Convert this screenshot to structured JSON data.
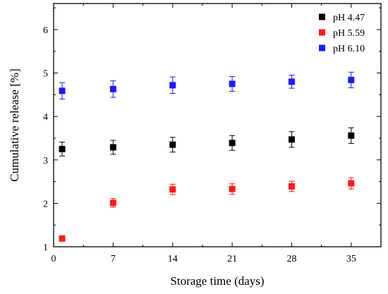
{
  "chart_data": {
    "type": "scatter",
    "title": "",
    "xlabel": "Storage time (days)",
    "ylabel": "Cumulative release [%]",
    "xlim": [
      0,
      38.5
    ],
    "ylim": [
      1,
      6.6
    ],
    "xticks": [
      0,
      7,
      14,
      21,
      28,
      35
    ],
    "yticks": [
      1,
      2,
      3,
      4,
      5,
      6
    ],
    "grid": false,
    "legend_position": "top-right",
    "marker": "square",
    "error_bars": true,
    "series": [
      {
        "name": "pH 4.47",
        "color": "#000000",
        "points": [
          {
            "x": 1,
            "y": 3.25,
            "err": 0.16
          },
          {
            "x": 7,
            "y": 3.29,
            "err": 0.16
          },
          {
            "x": 14,
            "y": 3.35,
            "err": 0.17
          },
          {
            "x": 21,
            "y": 3.39,
            "err": 0.17
          },
          {
            "x": 28,
            "y": 3.47,
            "err": 0.18
          },
          {
            "x": 35,
            "y": 3.56,
            "err": 0.18
          }
        ]
      },
      {
        "name": "pH 5.59",
        "color": "#ff1a1a",
        "points": [
          {
            "x": 1,
            "y": 1.19,
            "err": 0
          },
          {
            "x": 7,
            "y": 2.01,
            "err": 0.1
          },
          {
            "x": 14,
            "y": 2.32,
            "err": 0.12
          },
          {
            "x": 21,
            "y": 2.33,
            "err": 0.12
          },
          {
            "x": 28,
            "y": 2.39,
            "err": 0.12
          },
          {
            "x": 35,
            "y": 2.46,
            "err": 0.13
          }
        ]
      },
      {
        "name": "pH 6.10",
        "color": "#1a1aff",
        "points": [
          {
            "x": 1,
            "y": 4.59,
            "err": 0.19
          },
          {
            "x": 7,
            "y": 4.63,
            "err": 0.19
          },
          {
            "x": 14,
            "y": 4.72,
            "err": 0.19
          },
          {
            "x": 21,
            "y": 4.75,
            "err": 0.17
          },
          {
            "x": 28,
            "y": 4.8,
            "err": 0.15
          },
          {
            "x": 35,
            "y": 4.84,
            "err": 0.18
          }
        ]
      }
    ]
  }
}
